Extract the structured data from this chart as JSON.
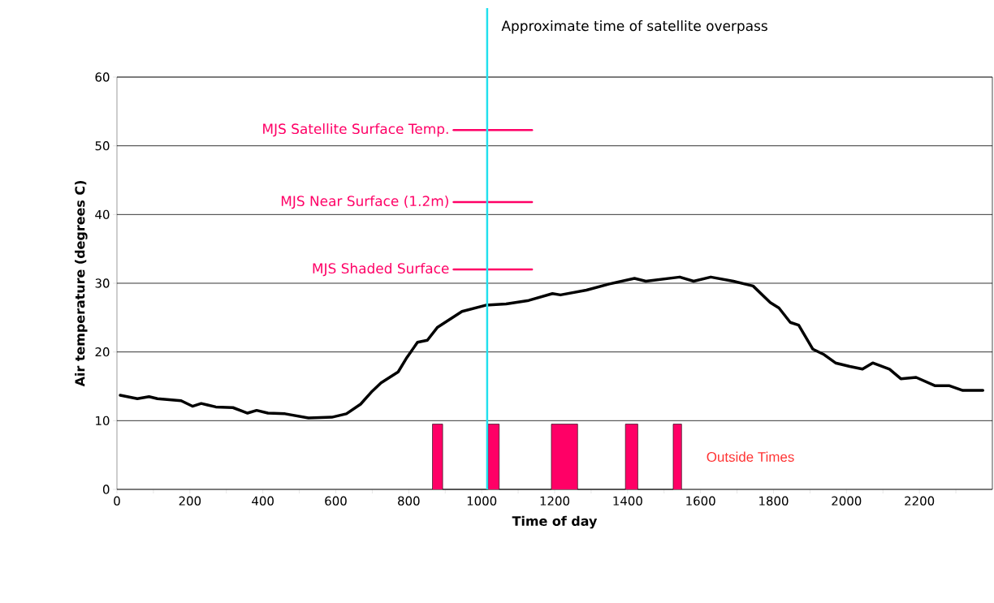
{
  "chart_data": {
    "type": "line",
    "xlabel": "Time of day",
    "ylabel": "Air temperature (degrees C)",
    "xlim": [
      0,
      2400
    ],
    "ylim": [
      0,
      60
    ],
    "xticks": [
      0,
      {
        "value": 100,
        "label": null
      },
      200,
      {
        "value": 300,
        "label": null
      },
      400,
      {
        "value": 500,
        "label": null
      },
      600,
      {
        "value": 700,
        "label": null
      },
      800,
      {
        "value": 900,
        "label": null
      },
      1000,
      {
        "value": 1100,
        "label": null
      },
      1200,
      {
        "value": 1300,
        "label": null
      },
      1400,
      {
        "value": 1500,
        "label": null
      },
      1600,
      {
        "value": 1700,
        "label": null
      },
      1800,
      {
        "value": 1900,
        "label": null
      },
      2000,
      {
        "value": 2100,
        "label": null
      },
      2200,
      {
        "value": 2300,
        "label": null
      }
    ],
    "yticks": [
      0,
      10,
      20,
      30,
      40,
      50,
      60
    ],
    "grid": "y",
    "line_style": "solid",
    "series": [
      {
        "color": "#000000",
        "x": [
          9,
          56,
          88,
          111,
          176,
          207,
          231,
          271,
          318,
          358,
          383,
          414,
          461,
          525,
          589,
          629,
          668,
          700,
          724,
          771,
          795,
          824,
          851,
          879,
          946,
          1011,
          1067,
          1129,
          1194,
          1216,
          1287,
          1350,
          1419,
          1450,
          1543,
          1581,
          1628,
          1690,
          1744,
          1791,
          1815,
          1846,
          1869,
          1908,
          1939,
          1970,
          2009,
          2044,
          2072,
          2118,
          2149,
          2191,
          2242,
          2281,
          2319,
          2374
        ],
        "values": [
          13.7,
          13.2,
          13.5,
          13.2,
          12.9,
          12.1,
          12.5,
          12.0,
          11.9,
          11.1,
          11.5,
          11.1,
          11.0,
          10.4,
          10.5,
          11.0,
          12.4,
          14.3,
          15.5,
          17.1,
          19.2,
          21.4,
          21.7,
          23.6,
          25.9,
          26.8,
          27.0,
          27.5,
          28.5,
          28.3,
          29.0,
          29.9,
          30.7,
          30.3,
          30.9,
          30.3,
          30.9,
          30.3,
          29.6,
          27.2,
          26.4,
          24.3,
          23.9,
          20.4,
          19.6,
          18.4,
          17.9,
          17.5,
          18.4,
          17.5,
          16.1,
          16.3,
          15.1,
          15.1,
          14.4,
          14.4
        ]
      },
      {
        "name": "MJS Satellite Surface Temp.",
        "color": "#ff0066",
        "x": [
          923,
          1138
        ],
        "values": [
          52.3,
          52.3
        ]
      },
      {
        "name": "MJS Near Surface (1.2m)",
        "color": "#ff0066",
        "x": [
          923,
          1138
        ],
        "values": [
          41.8,
          41.8
        ]
      },
      {
        "name": "MJS Shaded Surface",
        "color": "#ff0066",
        "x": [
          923,
          1138
        ],
        "values": [
          32.0,
          32.0
        ]
      },
      {
        "type": "area",
        "name": "Outside Times",
        "color": "#ff0066",
        "x": [
          865,
          865,
          893,
          893,
          1017,
          1017,
          1048,
          1048,
          1191,
          1191,
          1263,
          1263,
          1394,
          1394,
          1428,
          1428,
          1525,
          1525,
          1548,
          1548
        ],
        "values": [
          0,
          9.5,
          9.5,
          0,
          0,
          9.5,
          9.5,
          0,
          0,
          9.5,
          9.5,
          0,
          0,
          9.5,
          9.5,
          0,
          0,
          9.5,
          9.5,
          0
        ]
      }
    ],
    "ref_lines": [
      {
        "axis": "x",
        "value": 1015,
        "label": "Approximate time of satellite overpass",
        "color": "#22e0ee"
      }
    ]
  }
}
